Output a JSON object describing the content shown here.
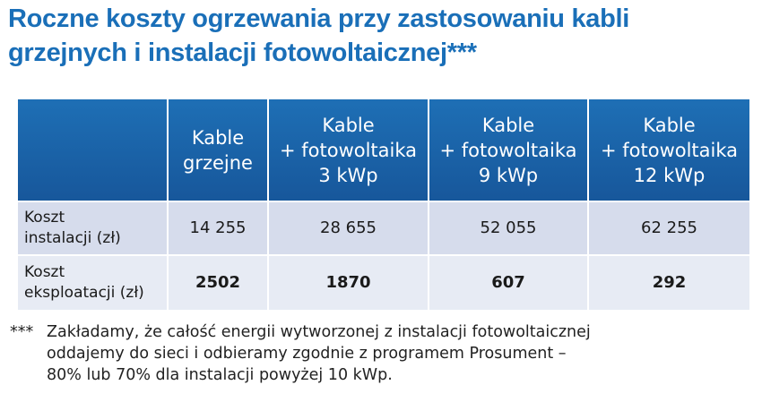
{
  "title": {
    "line1": "Roczne koszty ogrzewania przy zastosowaniu kabli",
    "line2": "grzejnych i instalacji fotowoltaicznej***"
  },
  "table": {
    "headers": [
      {
        "lines": [
          "Kable",
          "grzejne"
        ]
      },
      {
        "lines": [
          "Kable",
          "+ fotowoltaika",
          "3 kWp"
        ]
      },
      {
        "lines": [
          "Kable",
          "+ fotowoltaika",
          "9 kWp"
        ]
      },
      {
        "lines": [
          "Kable",
          "+ fotowoltaika",
          "12 kWp"
        ]
      }
    ],
    "rows": [
      {
        "label_lines": [
          "Koszt",
          "instalacji (zł)"
        ],
        "values": [
          "14 255",
          "28 655",
          "52 055",
          "62 255"
        ]
      },
      {
        "label_lines": [
          "Koszt",
          "eksploatacji (zł)"
        ],
        "values": [
          "2502",
          "1870",
          "607",
          "292"
        ]
      }
    ]
  },
  "footnote": {
    "mark": "***",
    "lines": [
      "Zakładamy, że całość energii wytworzonej z instalacji fotowoltaicznej",
      "oddajemy do sieci i odbieramy zgodnie z programem Prosument –",
      "80% lub 70% dla instalacji powyżej 10 kWp."
    ]
  },
  "colors": {
    "title": "#1a6fb8",
    "header_bg": "#1e6fb5",
    "row1_bg": "#d6dcec",
    "row2_bg": "#e7ebf4"
  }
}
